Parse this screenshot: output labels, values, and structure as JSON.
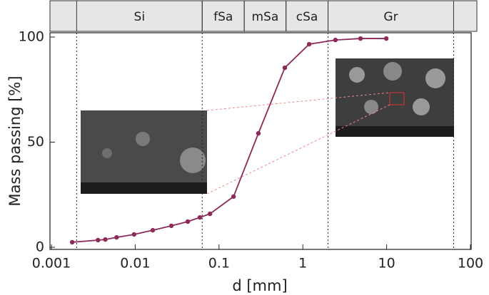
{
  "chart_data": {
    "type": "line",
    "x_label": "d [mm]",
    "y_label": "Mass passing [%]",
    "x_log": true,
    "x": [
      0.00177,
      0.0036,
      0.0044,
      0.006,
      0.0097,
      0.0162,
      0.027,
      0.0424,
      0.059,
      0.078,
      0.149,
      0.295,
      0.61,
      1.19,
      2.45,
      4.88,
      9.9
    ],
    "series": [
      {
        "color": "#8e2a5a",
        "values": [
          2.4,
          3.4,
          3.7,
          4.7,
          6.1,
          8.1,
          10.2,
          12.2,
          14.2,
          15.9,
          24.1,
          54.2,
          85.4,
          96.6,
          98.6,
          99.3,
          99.3
        ]
      }
    ],
    "xlim": [
      0.001,
      100
    ],
    "xticks": [
      0.001,
      0.01,
      0.1,
      1,
      10,
      100
    ],
    "ylim": [
      0,
      100
    ],
    "yticks": [
      0,
      50,
      100
    ],
    "zones": [
      {
        "label": "Si",
        "from": 0.002,
        "to": 0.063
      },
      {
        "label": "fSa",
        "from": 0.063,
        "to": 0.2
      },
      {
        "label": "mSa",
        "from": 0.2,
        "to": 0.63
      },
      {
        "label": "cSa",
        "from": 0.63,
        "to": 2
      },
      {
        "label": "Gr",
        "from": 2,
        "to": 63
      }
    ],
    "dotted_lines": [
      0.002,
      0.063,
      2,
      63
    ]
  }
}
